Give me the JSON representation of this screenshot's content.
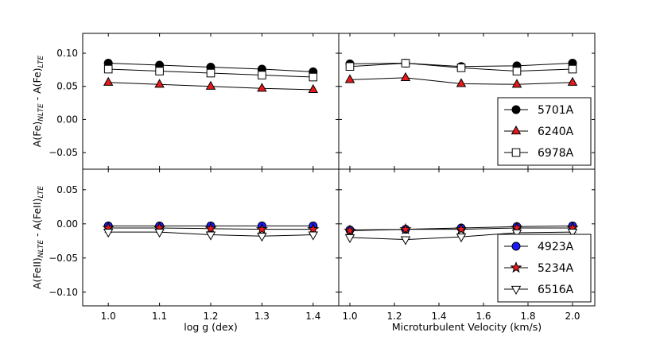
{
  "chart_data": [
    {
      "panel": "top-left",
      "type": "line",
      "xlabel": "",
      "ylabel_base": "A(Fe)",
      "ylabel_sub1": "NLTE",
      "ylabel_mid": " - A(Fe)",
      "ylabel_sub2": "LTE",
      "xlim": [
        0.95,
        1.45
      ],
      "ylim": [
        -0.075,
        0.13
      ],
      "xticks": [],
      "yticks": [
        {
          "v": 0.1,
          "label": "0.10"
        },
        {
          "v": 0.05,
          "label": "0.05"
        },
        {
          "v": 0.0,
          "label": "0.00"
        },
        {
          "v": -0.05,
          "label": "−0.05"
        }
      ],
      "series": [
        {
          "name": "5701A",
          "marker": "circle",
          "fill": "#000000",
          "x": [
            1.0,
            1.1,
            1.2,
            1.3,
            1.4
          ],
          "y": [
            0.085,
            0.082,
            0.079,
            0.076,
            0.072
          ]
        },
        {
          "name": "6240A",
          "marker": "triangle",
          "fill": "#e41a1c",
          "x": [
            1.0,
            1.1,
            1.2,
            1.3,
            1.4
          ],
          "y": [
            0.056,
            0.053,
            0.05,
            0.047,
            0.045
          ]
        },
        {
          "name": "6978A",
          "marker": "square",
          "fill": "#ffffff",
          "x": [
            1.0,
            1.1,
            1.2,
            1.3,
            1.4
          ],
          "y": [
            0.076,
            0.073,
            0.07,
            0.067,
            0.064
          ]
        }
      ]
    },
    {
      "panel": "top-right",
      "type": "line",
      "xlabel": "",
      "xlim": [
        0.95,
        2.1
      ],
      "ylim": [
        -0.075,
        0.13
      ],
      "xticks": [],
      "yticks": [],
      "legend": {
        "position": "lower-right",
        "entries": [
          {
            "name": "5701A",
            "marker": "circle",
            "fill": "#000000"
          },
          {
            "name": "6240A",
            "marker": "triangle",
            "fill": "#e41a1c"
          },
          {
            "name": "6978A",
            "marker": "square",
            "fill": "#ffffff"
          }
        ]
      },
      "series": [
        {
          "name": "5701A",
          "marker": "circle",
          "fill": "#000000",
          "x": [
            1.0,
            1.25,
            1.5,
            1.75,
            2.0
          ],
          "y": [
            0.084,
            0.085,
            0.08,
            0.081,
            0.085
          ]
        },
        {
          "name": "6240A",
          "marker": "triangle",
          "fill": "#e41a1c",
          "x": [
            1.0,
            1.25,
            1.5,
            1.75,
            2.0
          ],
          "y": [
            0.06,
            0.063,
            0.054,
            0.053,
            0.056
          ]
        },
        {
          "name": "6978A",
          "marker": "square",
          "fill": "#ffffff",
          "x": [
            1.0,
            1.25,
            1.5,
            1.75,
            2.0
          ],
          "y": [
            0.08,
            0.085,
            0.078,
            0.073,
            0.076
          ]
        }
      ]
    },
    {
      "panel": "bottom-left",
      "type": "line",
      "xlabel": "log g (dex)",
      "ylabel_base": "A(FeII)",
      "ylabel_sub1": "NLTE",
      "ylabel_mid": " - A(FeII)",
      "ylabel_sub2": "LTE",
      "xlim": [
        0.95,
        1.45
      ],
      "ylim": [
        -0.12,
        0.08
      ],
      "xticks": [
        {
          "v": 1.0,
          "label": "1.0"
        },
        {
          "v": 1.1,
          "label": "1.1"
        },
        {
          "v": 1.2,
          "label": "1.2"
        },
        {
          "v": 1.3,
          "label": "1.3"
        },
        {
          "v": 1.4,
          "label": "1.4"
        }
      ],
      "yticks": [
        {
          "v": 0.05,
          "label": "0.05"
        },
        {
          "v": 0.0,
          "label": "0.00"
        },
        {
          "v": -0.05,
          "label": "−0.05"
        },
        {
          "v": -0.1,
          "label": "−0.10"
        }
      ],
      "series": [
        {
          "name": "4923A",
          "marker": "circle",
          "fill": "#1a1aff",
          "x": [
            1.0,
            1.1,
            1.2,
            1.3,
            1.4
          ],
          "y": [
            -0.003,
            -0.003,
            -0.003,
            -0.003,
            -0.003
          ]
        },
        {
          "name": "5234A",
          "marker": "star",
          "fill": "#e41a1c",
          "x": [
            1.0,
            1.1,
            1.2,
            1.3,
            1.4
          ],
          "y": [
            -0.006,
            -0.006,
            -0.007,
            -0.008,
            -0.008
          ]
        },
        {
          "name": "6516A",
          "marker": "triangle-down",
          "fill": "#ffffff",
          "x": [
            1.0,
            1.1,
            1.2,
            1.3,
            1.4
          ],
          "y": [
            -0.012,
            -0.012,
            -0.016,
            -0.018,
            -0.016
          ]
        }
      ]
    },
    {
      "panel": "bottom-right",
      "type": "line",
      "xlabel": "Microturbulent Velocity (km/s)",
      "xlim": [
        0.95,
        2.1
      ],
      "ylim": [
        -0.12,
        0.08
      ],
      "xticks": [
        {
          "v": 1.0,
          "label": "1.0"
        },
        {
          "v": 1.2,
          "label": "1.2"
        },
        {
          "v": 1.4,
          "label": "1.4"
        },
        {
          "v": 1.6,
          "label": "1.6"
        },
        {
          "v": 1.8,
          "label": "1.8"
        },
        {
          "v": 2.0,
          "label": "2.0"
        }
      ],
      "yticks": [],
      "legend": {
        "position": "lower-right",
        "entries": [
          {
            "name": "4923A",
            "marker": "circle",
            "fill": "#1a1aff"
          },
          {
            "name": "5234A",
            "marker": "star",
            "fill": "#e41a1c"
          },
          {
            "name": "6516A",
            "marker": "triangle-down",
            "fill": "#ffffff"
          }
        ]
      },
      "series": [
        {
          "name": "4923A",
          "marker": "circle",
          "fill": "#1a1aff",
          "x": [
            1.0,
            1.25,
            1.5,
            1.75,
            2.0
          ],
          "y": [
            -0.009,
            -0.008,
            -0.006,
            -0.004,
            -0.003
          ]
        },
        {
          "name": "5234A",
          "marker": "star",
          "fill": "#e41a1c",
          "x": [
            1.0,
            1.25,
            1.5,
            1.75,
            2.0
          ],
          "y": [
            -0.01,
            -0.008,
            -0.008,
            -0.006,
            -0.006
          ]
        },
        {
          "name": "6516A",
          "marker": "triangle-down",
          "fill": "#ffffff",
          "x": [
            1.0,
            1.25,
            1.5,
            1.75,
            2.0
          ],
          "y": [
            -0.02,
            -0.023,
            -0.019,
            -0.013,
            -0.012
          ]
        }
      ]
    }
  ]
}
